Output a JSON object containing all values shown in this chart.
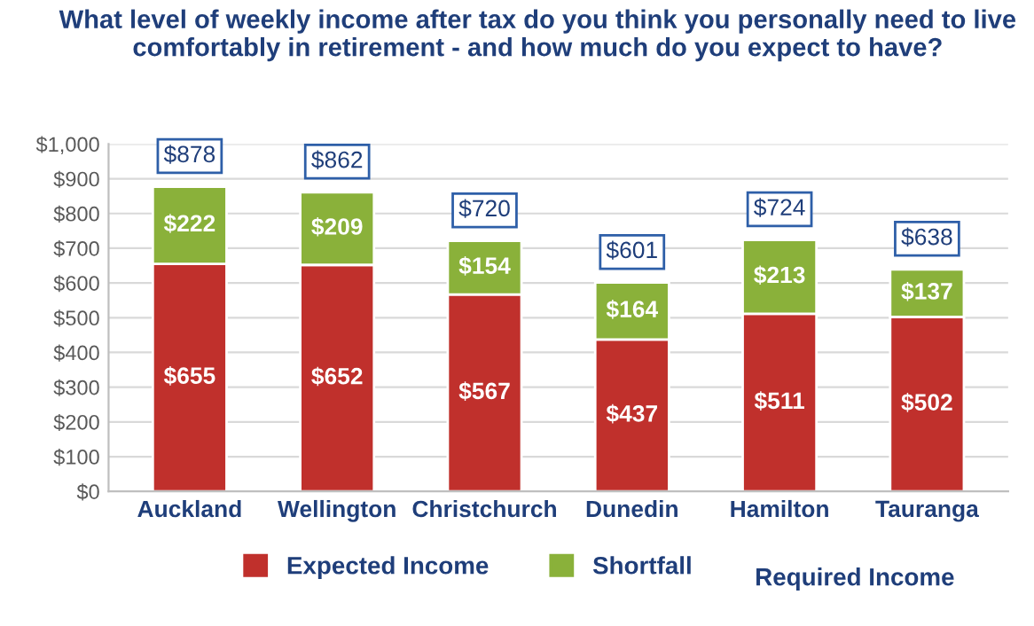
{
  "chart_data": {
    "type": "bar",
    "title": "What level of weekly income after tax do you think you personally need to live comfortably in retirement - and how much do you expect to have?",
    "categories": [
      "Auckland",
      "Wellington",
      "Christchurch",
      "Dunedin",
      "Hamilton",
      "Tauranga"
    ],
    "stacked": true,
    "series": [
      {
        "name": "Expected Income",
        "color": "#c0302c",
        "values": [
          655,
          652,
          567,
          437,
          511,
          502
        ],
        "value_labels": [
          "$655",
          "$652",
          "$567",
          "$437",
          "$511",
          "$502"
        ]
      },
      {
        "name": "Shortfall",
        "color": "#8ab13a",
        "values": [
          222,
          209,
          154,
          164,
          213,
          137
        ],
        "value_labels": [
          "$222",
          "$209",
          "$154",
          "$164",
          "$213",
          "$137"
        ]
      }
    ],
    "totals": [
      "$878",
      "$862",
      "$720",
      "$601",
      "$724",
      "$638"
    ],
    "annotations": [
      "Required Income"
    ],
    "ylim": [
      0,
      1000
    ],
    "yticks": [
      {
        "value": 0,
        "label": "$0"
      },
      {
        "value": 100,
        "label": "$100"
      },
      {
        "value": 200,
        "label": "$200"
      },
      {
        "value": 300,
        "label": "$300"
      },
      {
        "value": 400,
        "label": "$400"
      },
      {
        "value": 500,
        "label": "$500"
      },
      {
        "value": 600,
        "label": "$600"
      },
      {
        "value": 700,
        "label": "$700"
      },
      {
        "value": 800,
        "label": "$800"
      },
      {
        "value": 900,
        "label": "$900"
      },
      {
        "value": 1000,
        "label": "$1,000"
      }
    ],
    "grid": "y",
    "legend": "bottom"
  }
}
